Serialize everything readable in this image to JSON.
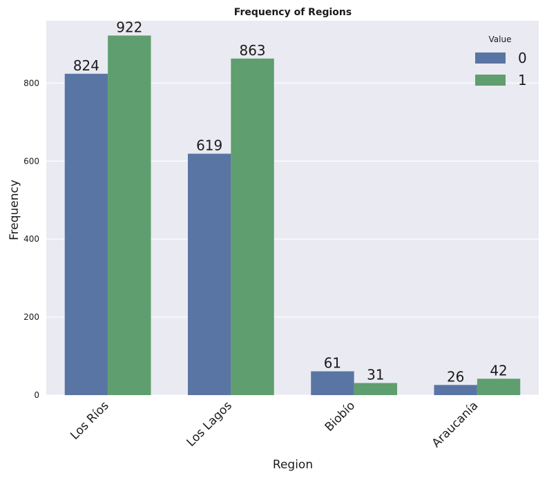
{
  "chart_data": {
    "type": "bar",
    "title": "Frequency of Regions",
    "xlabel": "Region",
    "ylabel": "Frequency",
    "categories": [
      "Los Ríos",
      "Los Lagos",
      "Biobío",
      "Araucanía"
    ],
    "series": [
      {
        "name": "0",
        "values": [
          824,
          619,
          61,
          26
        ],
        "color": "#5975a4"
      },
      {
        "name": "1",
        "values": [
          922,
          863,
          31,
          42
        ],
        "color": "#5f9e6e"
      }
    ],
    "ylim": [
      0,
      960
    ],
    "yticks": [
      "0",
      "200",
      "400",
      "600",
      "800"
    ],
    "legend": {
      "title": "Value",
      "placement": "top-right"
    },
    "grid": true,
    "background": "#eaeaf2",
    "grid_color": "#ffffff"
  }
}
